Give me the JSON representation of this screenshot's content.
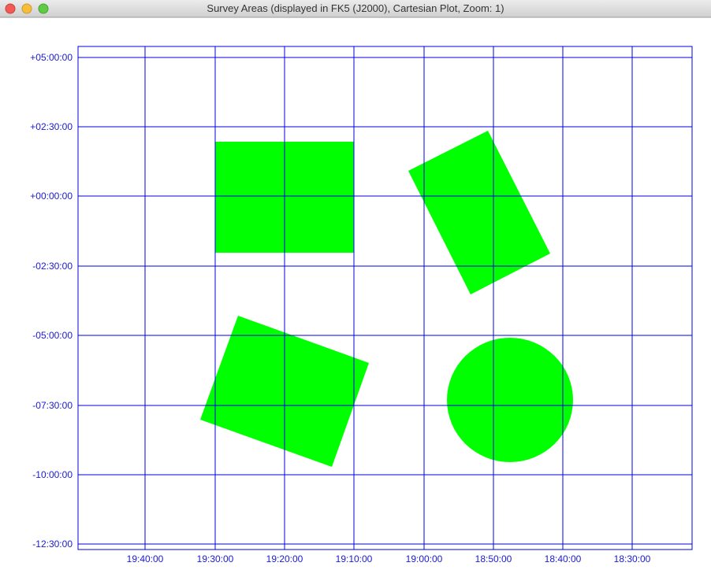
{
  "window": {
    "title": "Survey Areas (displayed in FK5 (J2000), Cartesian Plot, Zoom: 1)"
  },
  "plot": {
    "y_tick_labels": [
      "+05:00:00",
      "+02:30:00",
      "+00:00:00",
      "-02:30:00",
      "-05:00:00",
      "-07:30:00",
      "-10:00:00",
      "-12:30:00"
    ],
    "x_tick_labels": [
      "19:40:00",
      "19:30:00",
      "19:20:00",
      "19:10:00",
      "19:00:00",
      "18:50:00",
      "18:40:00",
      "18:30:00"
    ]
  }
}
